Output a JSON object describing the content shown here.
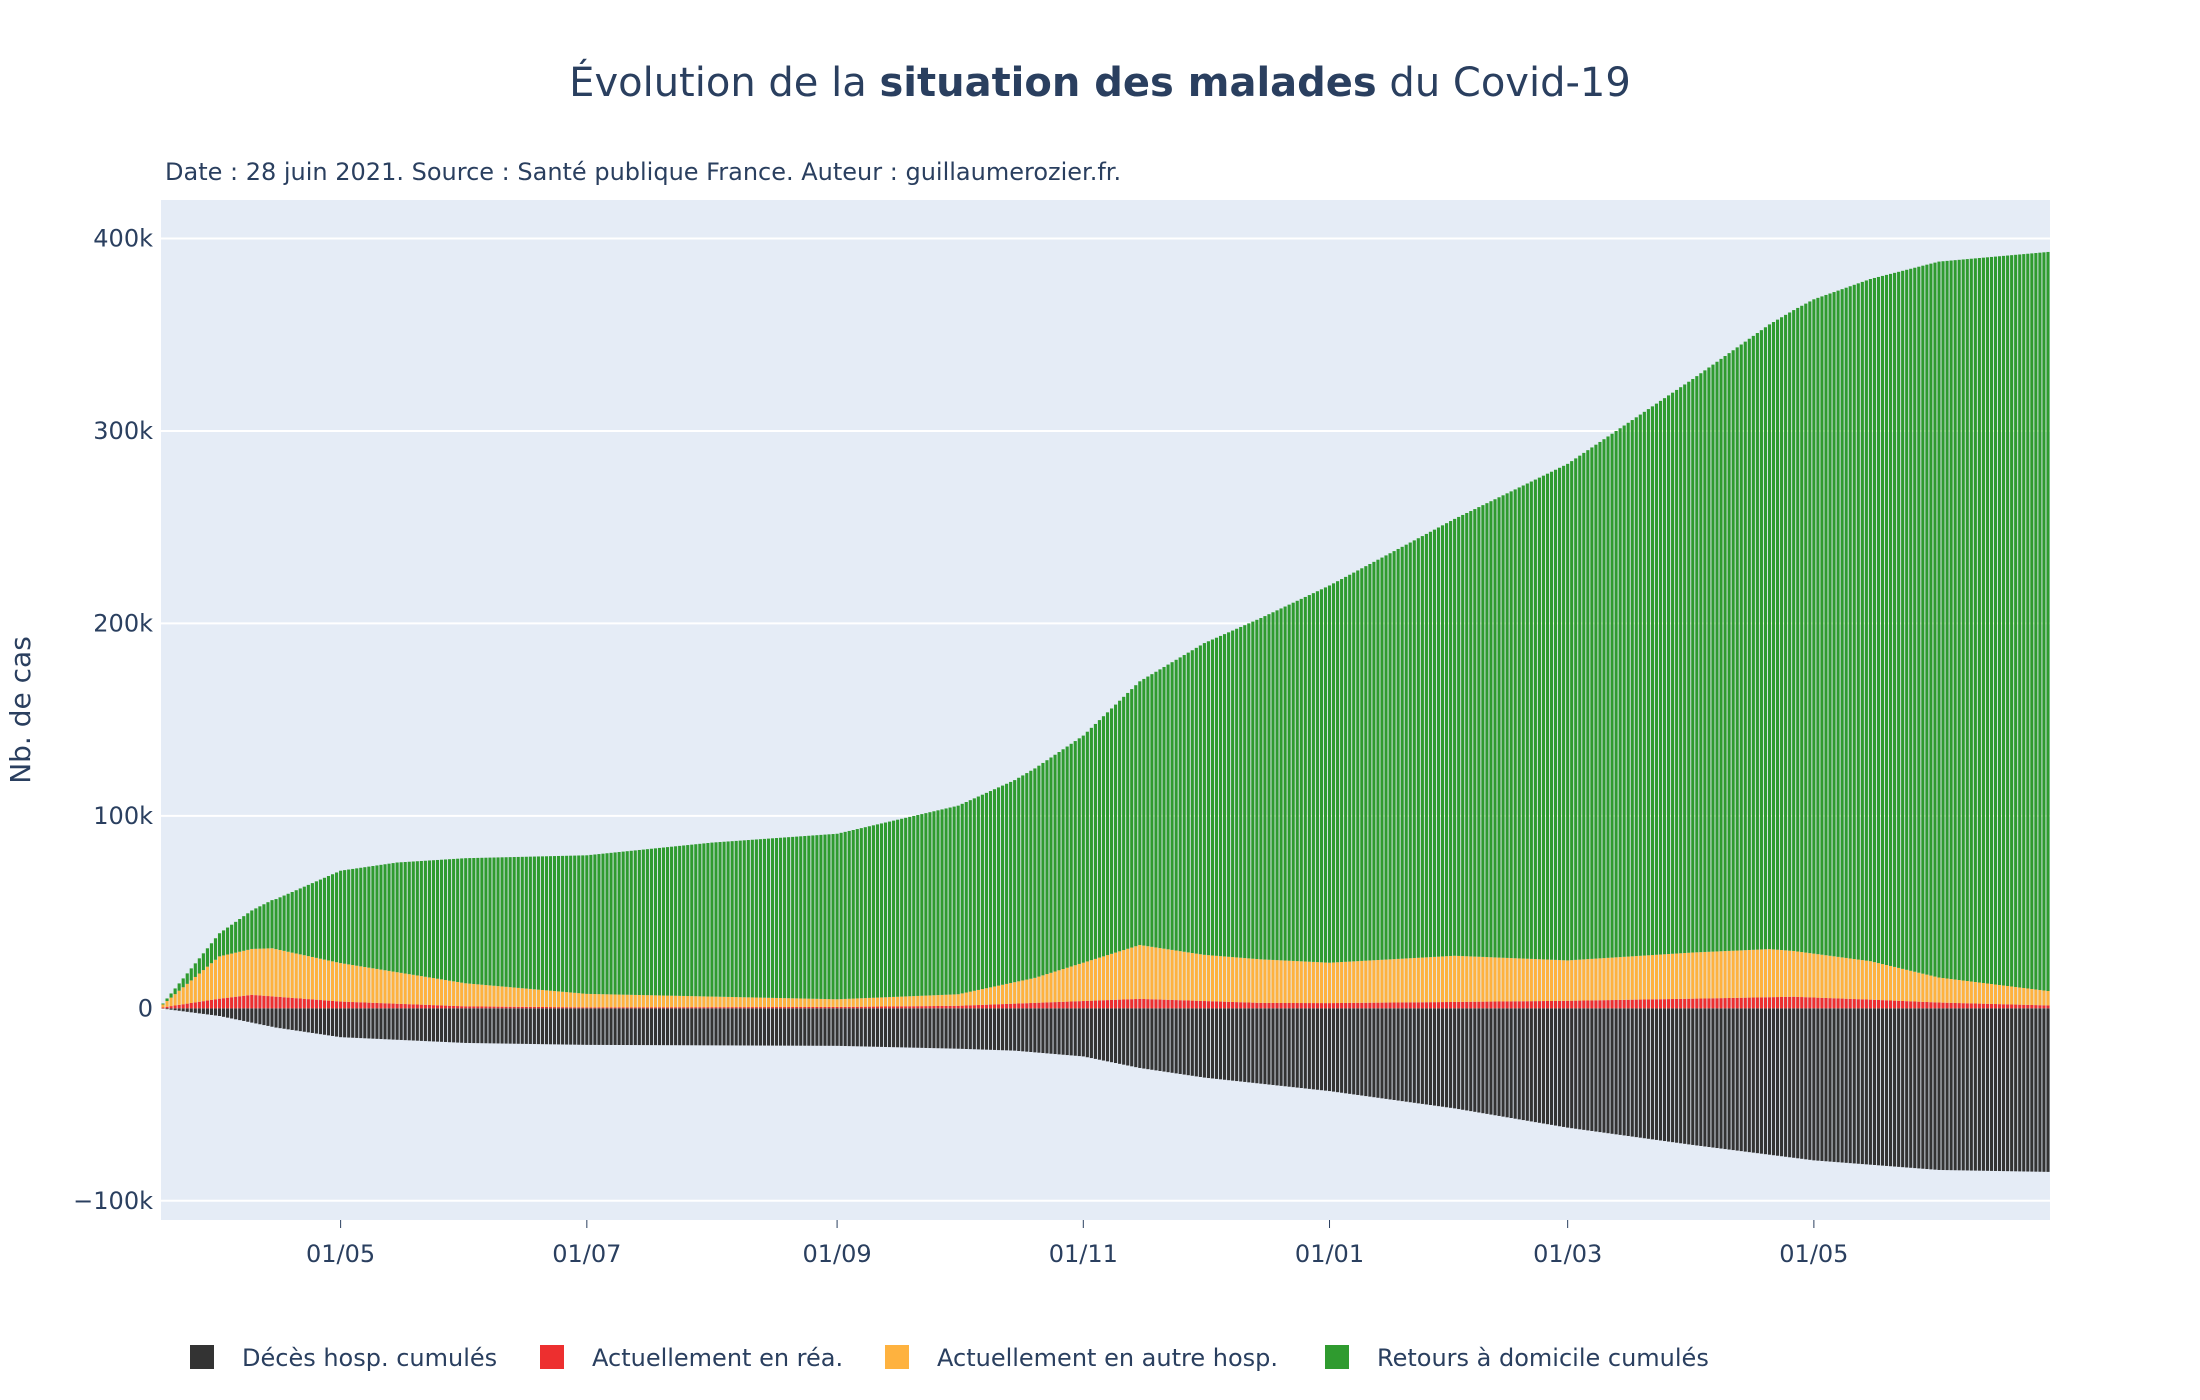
{
  "chart_data": {
    "type": "bar",
    "stacked": true,
    "title_prefix": "Évolution de la ",
    "title_bold": "situation des malades",
    "title_suffix": " du Covid-19",
    "subtitle": "Date : 28 juin 2021. Source : Santé publique France. Auteur : guillaumerozier.fr.",
    "ylabel": "Nb. de cas",
    "ylim": [
      -110000,
      420000
    ],
    "yticks": [
      400000,
      300000,
      200000,
      100000,
      0,
      -100000
    ],
    "ytick_labels": [
      "400k",
      "300k",
      "200k",
      "100k",
      "0",
      "−100k"
    ],
    "x_start": "2020-03-18",
    "x_end": "2021-06-28",
    "xticks": [
      "2020-05-01",
      "2020-07-01",
      "2020-09-01",
      "2020-11-01",
      "2021-01-01",
      "2021-03-01",
      "2021-05-01"
    ],
    "xtick_labels": [
      "01/05",
      "01/07",
      "01/09",
      "01/11",
      "01/01",
      "01/03",
      "01/05"
    ],
    "grid": true,
    "legend_position": "bottom",
    "series": [
      {
        "name": "Décès hosp. cumulés",
        "color": "#333333",
        "keypoints": [
          [
            "2020-03-18",
            -200
          ],
          [
            "2020-04-01",
            -4000
          ],
          [
            "2020-04-15",
            -10000
          ],
          [
            "2020-05-01",
            -15000
          ],
          [
            "2020-06-01",
            -18000
          ],
          [
            "2020-07-01",
            -19000
          ],
          [
            "2020-09-01",
            -19500
          ],
          [
            "2020-10-01",
            -21000
          ],
          [
            "2020-10-15",
            -22000
          ],
          [
            "2020-11-01",
            -25000
          ],
          [
            "2020-11-15",
            -31000
          ],
          [
            "2020-12-01",
            -36000
          ],
          [
            "2021-01-01",
            -43000
          ],
          [
            "2021-02-01",
            -52000
          ],
          [
            "2021-03-01",
            -62000
          ],
          [
            "2021-04-01",
            -71000
          ],
          [
            "2021-05-01",
            -79000
          ],
          [
            "2021-06-01",
            -84000
          ],
          [
            "2021-06-28",
            -85000
          ]
        ]
      },
      {
        "name": "Actuellement en réa.",
        "color": "#ed2f2f",
        "keypoints": [
          [
            "2020-03-18",
            500
          ],
          [
            "2020-04-01",
            5000
          ],
          [
            "2020-04-09",
            7000
          ],
          [
            "2020-05-01",
            3500
          ],
          [
            "2020-06-01",
            1000
          ],
          [
            "2020-07-01",
            500
          ],
          [
            "2020-09-01",
            700
          ],
          [
            "2020-10-01",
            1300
          ],
          [
            "2020-11-15",
            4900
          ],
          [
            "2020-12-15",
            2800
          ],
          [
            "2021-01-01",
            2700
          ],
          [
            "2021-02-01",
            3300
          ],
          [
            "2021-03-01",
            3900
          ],
          [
            "2021-04-01",
            5000
          ],
          [
            "2021-04-26",
            6000
          ],
          [
            "2021-05-15",
            4500
          ],
          [
            "2021-06-01",
            3000
          ],
          [
            "2021-06-28",
            1500
          ]
        ]
      },
      {
        "name": "Actuellement en autre hosp.",
        "color": "#feb23f",
        "keypoints": [
          [
            "2020-03-18",
            1500
          ],
          [
            "2020-04-01",
            22000
          ],
          [
            "2020-04-14",
            25000
          ],
          [
            "2020-05-01",
            20000
          ],
          [
            "2020-06-01",
            12000
          ],
          [
            "2020-07-01",
            7000
          ],
          [
            "2020-09-01",
            4000
          ],
          [
            "2020-10-01",
            6000
          ],
          [
            "2020-10-20",
            13000
          ],
          [
            "2020-11-15",
            28000
          ],
          [
            "2020-12-01",
            24000
          ],
          [
            "2021-01-01",
            21000
          ],
          [
            "2021-02-01",
            24000
          ],
          [
            "2021-03-01",
            21000
          ],
          [
            "2021-04-01",
            24000
          ],
          [
            "2021-04-20",
            25000
          ],
          [
            "2021-05-15",
            20000
          ],
          [
            "2021-06-01",
            13000
          ],
          [
            "2021-06-28",
            7500
          ]
        ]
      },
      {
        "name": "Retours à domicile cumulés",
        "color": "#2f9b2f",
        "keypoints": [
          [
            "2020-03-18",
            500
          ],
          [
            "2020-04-01",
            12000
          ],
          [
            "2020-04-15",
            26000
          ],
          [
            "2020-05-01",
            48000
          ],
          [
            "2020-05-15",
            57000
          ],
          [
            "2020-06-01",
            65000
          ],
          [
            "2020-07-01",
            72000
          ],
          [
            "2020-08-01",
            80000
          ],
          [
            "2020-09-01",
            86000
          ],
          [
            "2020-10-01",
            98000
          ],
          [
            "2020-10-15",
            105000
          ],
          [
            "2020-11-01",
            118000
          ],
          [
            "2020-11-15",
            137000
          ],
          [
            "2020-12-01",
            162000
          ],
          [
            "2021-01-01",
            196000
          ],
          [
            "2021-02-01",
            227000
          ],
          [
            "2021-03-01",
            258000
          ],
          [
            "2021-04-01",
            298000
          ],
          [
            "2021-05-01",
            340000
          ],
          [
            "2021-06-01",
            372000
          ],
          [
            "2021-06-28",
            384000
          ]
        ]
      }
    ]
  }
}
